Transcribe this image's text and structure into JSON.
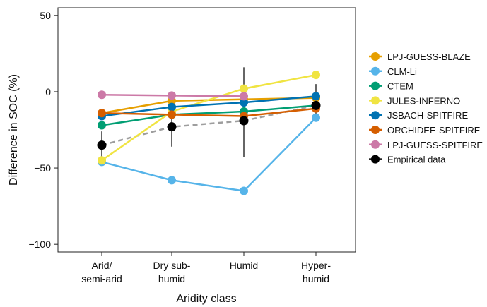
{
  "chart_data": {
    "type": "line",
    "xlabel": "Aridity class",
    "ylabel": "Difference in SOC (%)",
    "categories": [
      [
        "Arid/",
        "semi-arid"
      ],
      [
        "Dry sub-",
        "humid"
      ],
      [
        "Humid"
      ],
      [
        "Hyper-",
        "humid"
      ]
    ],
    "ylim": [
      -105,
      55
    ],
    "yticks": [
      50,
      0,
      -50,
      -100
    ],
    "ytick_labels": [
      "50",
      "0",
      "−50",
      "−100"
    ],
    "legend_position": "right",
    "series": [
      {
        "name": "LPJ-GUESS-BLAZE",
        "color": "#E69F00",
        "values": [
          -14,
          -6,
          -5,
          -4
        ]
      },
      {
        "name": "CLM-Li",
        "color": "#56B4E9",
        "values": [
          -46,
          -58,
          -65,
          -17
        ]
      },
      {
        "name": "CTEM",
        "color": "#009E73",
        "values": [
          -22,
          -15,
          -13,
          -9
        ]
      },
      {
        "name": "JULES-INFERNO",
        "color": "#F0E442",
        "values": [
          -45,
          -13,
          2,
          11
        ]
      },
      {
        "name": "JSBACH-SPITFIRE",
        "color": "#0072B2",
        "values": [
          -16,
          -10,
          -7,
          -3
        ]
      },
      {
        "name": "ORCHIDEE-SPITFIRE",
        "color": "#D55E00",
        "values": [
          -14,
          -15,
          -16,
          -11
        ]
      },
      {
        "name": "LPJ-GUESS-SPITFIRE",
        "color": "#CC79A7",
        "values": [
          -2,
          -2.5,
          -3,
          null
        ]
      }
    ],
    "empirical": {
      "name": "Empirical data",
      "color": "#000000",
      "values": [
        -35,
        -23,
        -19,
        -9
      ],
      "error_low": [
        -48,
        -36,
        -43,
        -16
      ],
      "error_high": [
        -26,
        -11,
        16,
        5
      ],
      "trend_color": "#9E9E9E"
    }
  }
}
